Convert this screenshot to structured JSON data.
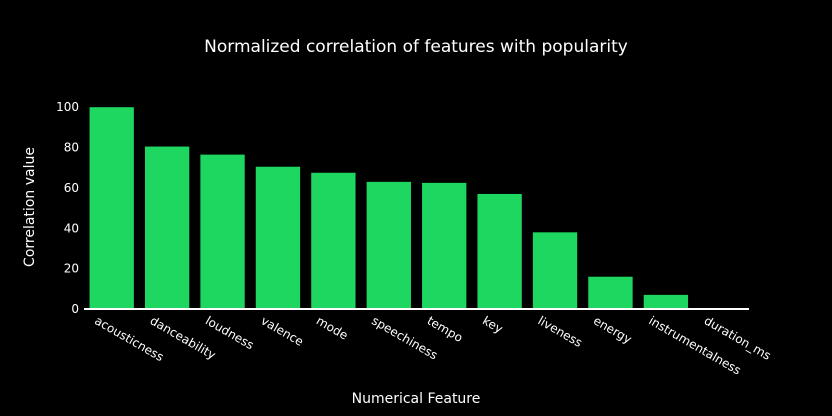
{
  "chart_data": {
    "type": "bar",
    "title": "Normalized correlation of features with popularity",
    "xlabel": "Numerical Feature",
    "ylabel": "Correlation value",
    "categories": [
      "acousticness",
      "danceability",
      "loudness",
      "valence",
      "mode",
      "speechiness",
      "tempo",
      "key",
      "liveness",
      "energy",
      "instrumentalness",
      "duration_ms"
    ],
    "values": [
      100,
      80.5,
      76.5,
      70.5,
      67.5,
      63,
      62.5,
      57,
      38,
      16,
      7,
      0
    ],
    "ylim": [
      0,
      110
    ],
    "yticks": [
      0,
      20,
      40,
      60,
      80,
      100
    ],
    "bar_color": "#1ed760",
    "background_color": "#000000",
    "text_color": "#ffffff",
    "grid": false,
    "legend": "none"
  }
}
